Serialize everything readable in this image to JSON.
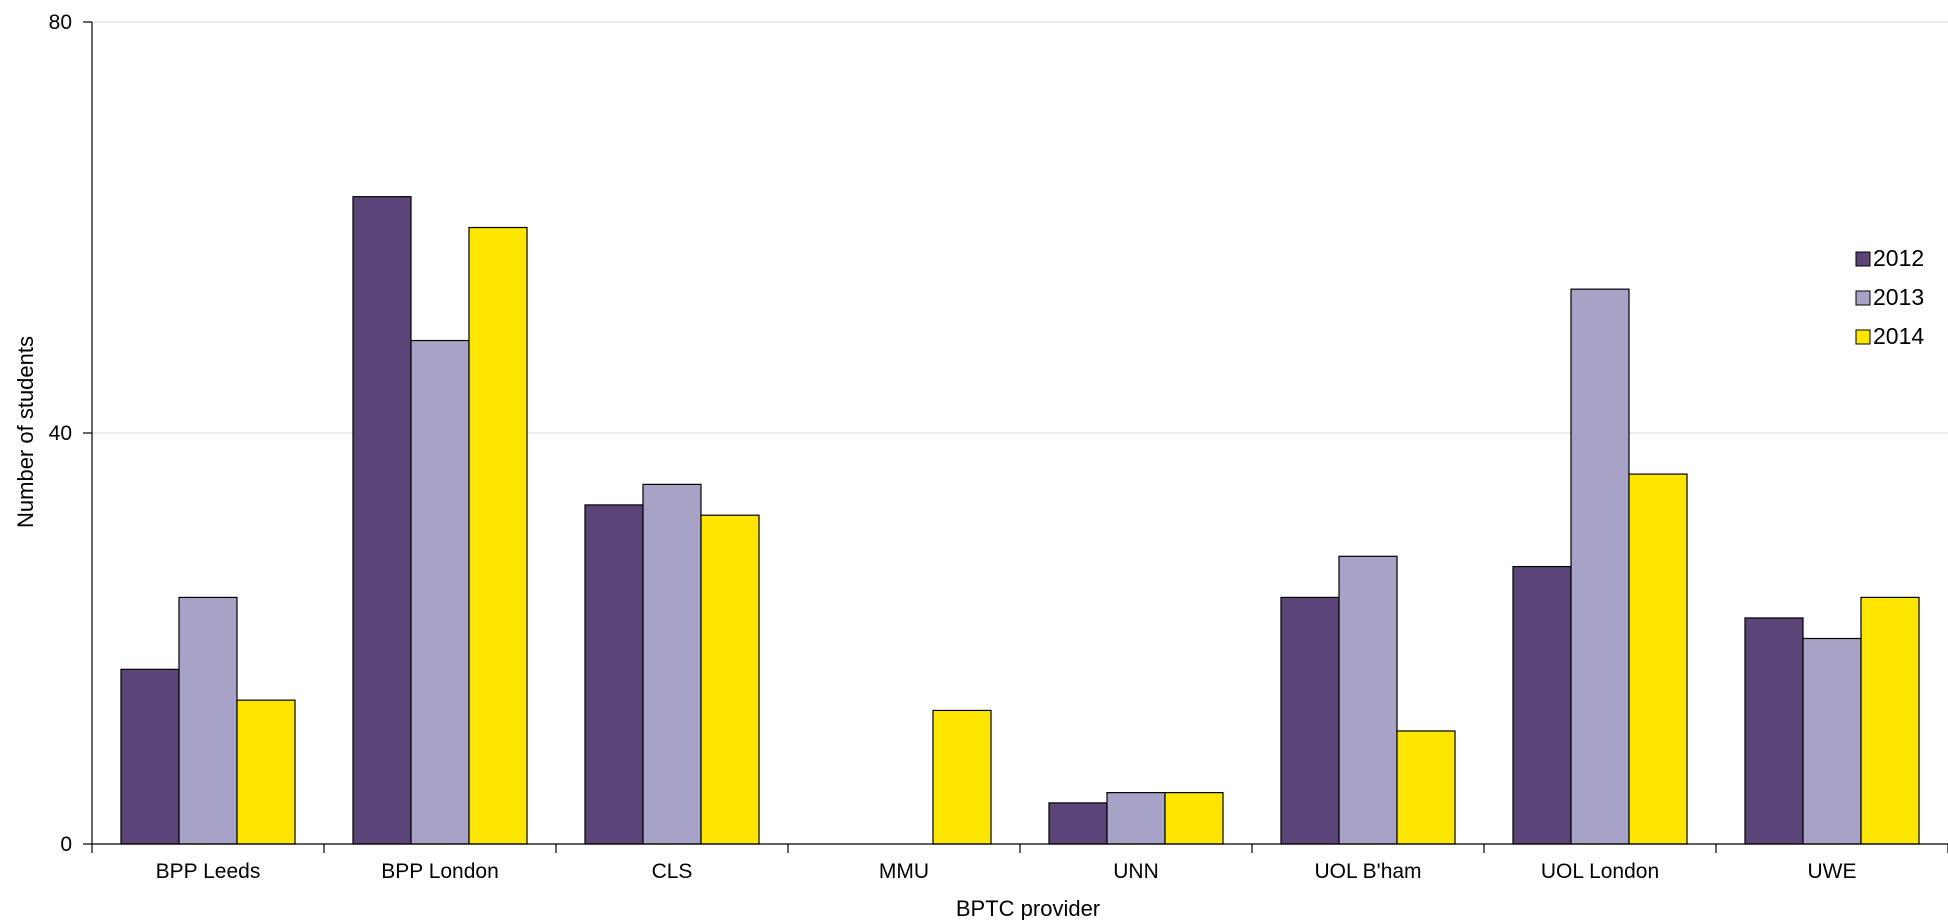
{
  "chart_data": {
    "type": "bar",
    "title": "",
    "xlabel": "BPTC provider",
    "ylabel": "Number of students",
    "ylim": [
      0,
      80
    ],
    "yticks": [
      0,
      40,
      80
    ],
    "grid": true,
    "legend_position": "right",
    "categories": [
      "BPP Leeds",
      "BPP London",
      "CLS",
      "MMU",
      "UNN",
      "UOL B'ham",
      "UOL London",
      "UWE"
    ],
    "series": [
      {
        "name": "2012",
        "color": "#5b4478",
        "values": [
          17,
          63,
          33,
          0,
          4,
          24,
          27,
          22
        ]
      },
      {
        "name": "2013",
        "color": "#a6a3c7",
        "values": [
          24,
          49,
          35,
          0,
          5,
          28,
          54,
          20
        ]
      },
      {
        "name": "2014",
        "color": "#ffe600",
        "values": [
          14,
          60,
          32,
          13,
          5,
          11,
          36,
          24
        ]
      }
    ]
  }
}
